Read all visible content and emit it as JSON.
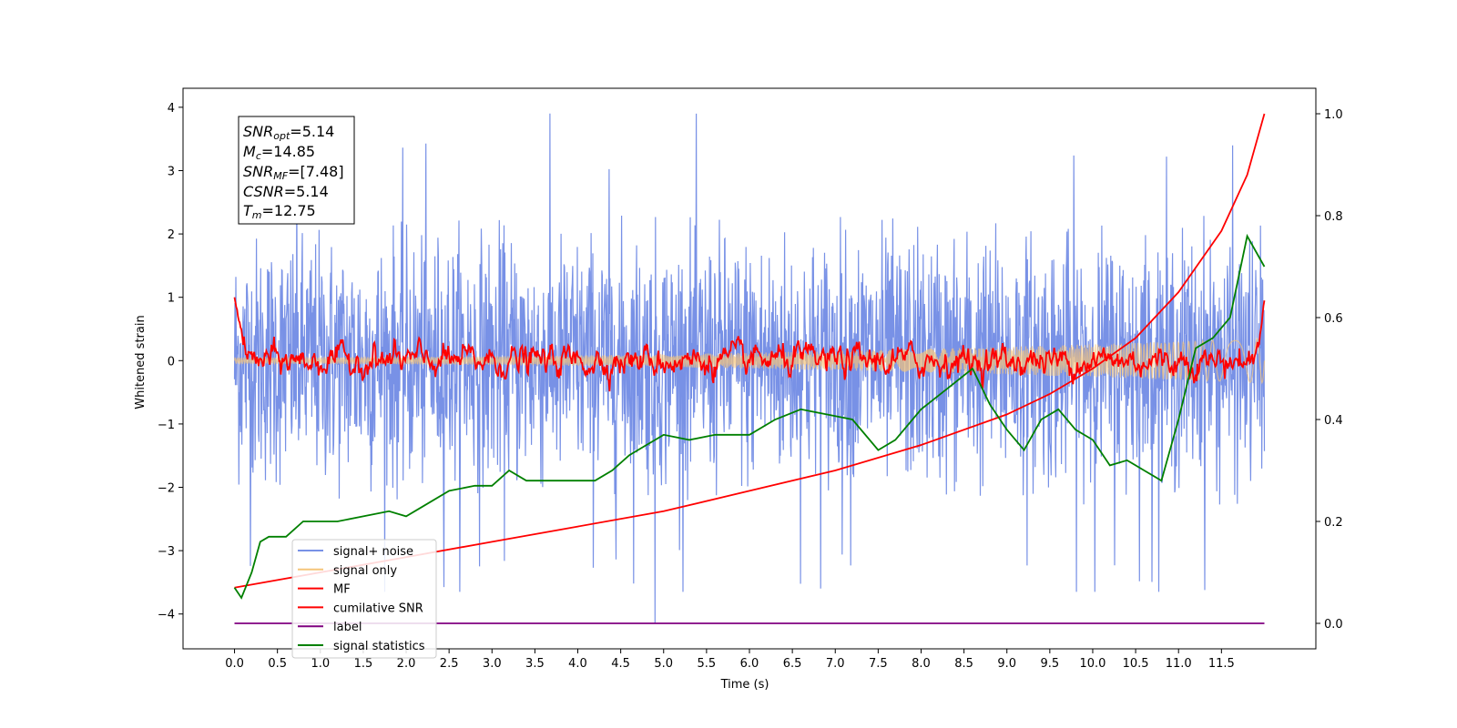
{
  "chart_data": {
    "type": "line",
    "xlabel": "Time (s)",
    "ylabel": "Whitened strain",
    "xlim": [
      -0.6,
      12.6
    ],
    "ylim": [
      -4.55,
      4.3
    ],
    "ylim_right": [
      -0.05,
      1.05
    ],
    "xticks": [
      "0.0",
      "0.5",
      "1.0",
      "1.5",
      "2.0",
      "2.5",
      "3.0",
      "3.5",
      "4.0",
      "4.5",
      "5.0",
      "5.5",
      "6.0",
      "6.5",
      "7.0",
      "7.5",
      "8.0",
      "8.5",
      "9.0",
      "9.5",
      "10.0",
      "10.5",
      "11.0",
      "11.5"
    ],
    "yticks_left": [
      "4",
      "3",
      "2",
      "1",
      "0",
      "−1",
      "−2",
      "−3",
      "−4"
    ],
    "yticks_right": [
      "1.0",
      "0.8",
      "0.6",
      "0.4",
      "0.2",
      "0.0"
    ],
    "grid": false,
    "legend_position": "lower-left",
    "annotation": {
      "snr_opt": {
        "base": "SNR",
        "sub": "opt",
        "value": "=5.14"
      },
      "mc": {
        "base": "M",
        "sub": "c",
        "value": "=14.85"
      },
      "snr_mf": {
        "base": "SNR",
        "sub": "MF",
        "value": "=[7.48]"
      },
      "csnr": {
        "base": "CSNR",
        "value": "=5.14"
      },
      "tm": {
        "base": "T",
        "sub": "m",
        "value": "=12.75"
      }
    },
    "series": [
      {
        "name": "signal+ noise",
        "color": "#7891e6",
        "axis": "left",
        "kind": "noise",
        "x_range": [
          0,
          12
        ],
        "envelope": [
          1.3,
          1.2
        ]
      },
      {
        "name": "signal only",
        "color": "#f5c57a",
        "axis": "left",
        "kind": "chirp",
        "x_range": [
          0,
          12
        ],
        "amp_start": 0.05,
        "amp_end": 0.35
      },
      {
        "name": "MF",
        "color": "#ff0000",
        "axis": "left",
        "kind": "mf",
        "x_range": [
          0,
          12
        ],
        "start": 1.0,
        "end": 0.95
      },
      {
        "name": "cumilative SNR",
        "color": "#ff0000",
        "axis": "right",
        "x": [
          0,
          1,
          2,
          3,
          4,
          5,
          6,
          7,
          8,
          9,
          9.5,
          10,
          10.5,
          11,
          11.5,
          11.8,
          12
        ],
        "y": [
          0.07,
          0.1,
          0.13,
          0.16,
          0.19,
          0.22,
          0.26,
          0.3,
          0.35,
          0.41,
          0.45,
          0.5,
          0.56,
          0.65,
          0.77,
          0.88,
          1.0
        ]
      },
      {
        "name": "label",
        "color": "#800080",
        "axis": "right",
        "x": [
          0,
          12
        ],
        "y": [
          0.0,
          0.0
        ]
      },
      {
        "name": "signal statistics",
        "color": "#008000",
        "axis": "right",
        "x": [
          0,
          0.08,
          0.2,
          0.3,
          0.4,
          0.6,
          0.8,
          1.0,
          1.2,
          1.5,
          1.8,
          2.0,
          2.2,
          2.5,
          2.8,
          3.0,
          3.2,
          3.4,
          3.6,
          3.8,
          4.0,
          4.2,
          4.4,
          4.6,
          4.8,
          5.0,
          5.3,
          5.6,
          6.0,
          6.3,
          6.6,
          6.9,
          7.2,
          7.5,
          7.7,
          8.0,
          8.3,
          8.6,
          8.8,
          9.0,
          9.2,
          9.4,
          9.6,
          9.8,
          10.0,
          10.2,
          10.4,
          10.6,
          10.8,
          11.0,
          11.2,
          11.4,
          11.6,
          11.8,
          12.0
        ],
        "y": [
          0.07,
          0.05,
          0.1,
          0.16,
          0.17,
          0.17,
          0.2,
          0.2,
          0.2,
          0.21,
          0.22,
          0.21,
          0.23,
          0.26,
          0.27,
          0.27,
          0.3,
          0.28,
          0.28,
          0.28,
          0.28,
          0.28,
          0.3,
          0.33,
          0.35,
          0.37,
          0.36,
          0.37,
          0.37,
          0.4,
          0.42,
          0.41,
          0.4,
          0.34,
          0.36,
          0.42,
          0.46,
          0.5,
          0.43,
          0.38,
          0.34,
          0.4,
          0.42,
          0.38,
          0.36,
          0.31,
          0.32,
          0.3,
          0.28,
          0.4,
          0.54,
          0.56,
          0.6,
          0.76,
          0.7
        ]
      }
    ]
  }
}
